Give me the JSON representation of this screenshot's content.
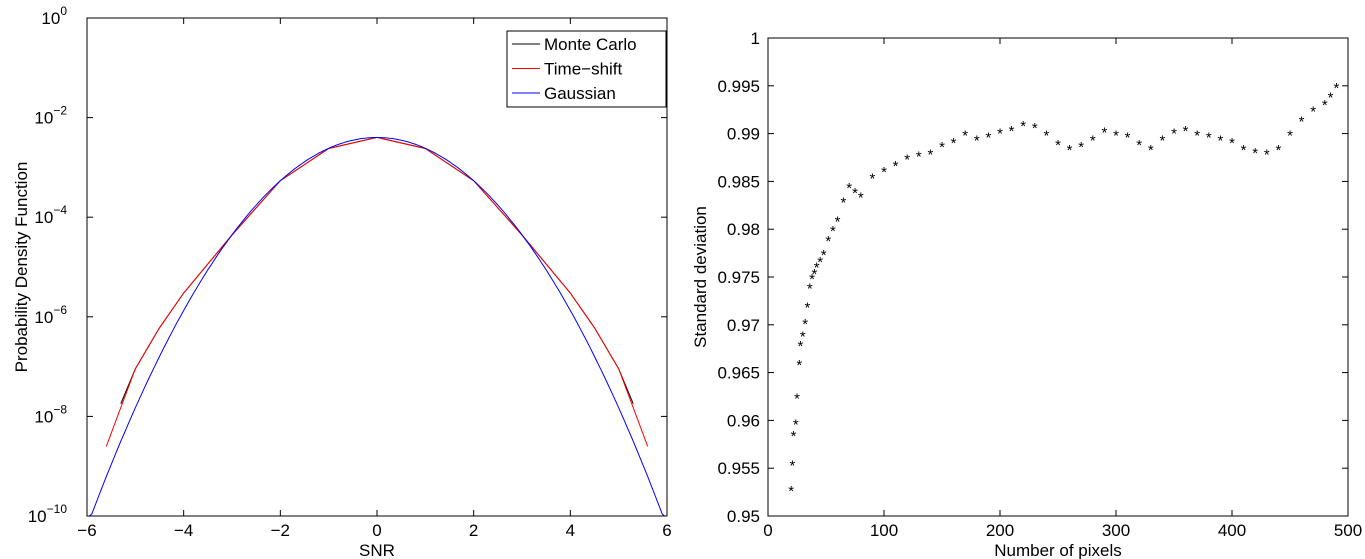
{
  "chart_data": [
    {
      "type": "line",
      "title": "",
      "xlabel": "SNR",
      "ylabel": "Probability Density Function",
      "xlim": [
        -6,
        6
      ],
      "ylim": [
        1e-10,
        1
      ],
      "yscale": "log",
      "xticks": [
        "−6",
        "−4",
        "−2",
        "0",
        "2",
        "4",
        "6"
      ],
      "yticks": [
        {
          "base": "10",
          "exp": "0"
        },
        {
          "base": "10",
          "exp": "-2"
        },
        {
          "base": "10",
          "exp": "-4"
        },
        {
          "base": "10",
          "exp": "-6"
        },
        {
          "base": "10",
          "exp": "-8"
        },
        {
          "base": "10",
          "exp": "-10"
        }
      ],
      "legend_position": "top-right",
      "grid": false,
      "series": [
        {
          "name": "Monte Carlo",
          "color": "#000000",
          "x": [
            -5.3,
            -5.0,
            -4.5,
            -4.0,
            -3.0,
            -2.0,
            -1.0,
            0.0,
            1.0,
            2.0,
            3.0,
            4.0,
            4.5,
            5.0,
            5.3
          ],
          "y": [
            1.8e-08,
            9e-08,
            6e-07,
            3e-06,
            4.4e-05,
            0.00054,
            0.0024,
            0.004,
            0.0024,
            0.00054,
            4.4e-05,
            3e-06,
            6e-07,
            9e-08,
            1.8e-08
          ]
        },
        {
          "name": "Time−shift",
          "color": "#ff0000",
          "x": [
            -5.6,
            -5.3,
            -5.0,
            -4.5,
            -4.0,
            -3.0,
            -2.0,
            -1.0,
            0.0,
            1.0,
            2.0,
            3.0,
            4.0,
            4.5,
            5.0,
            5.3,
            5.6
          ],
          "y": [
            2.5e-09,
            1.5e-08,
            9e-08,
            6e-07,
            3e-06,
            4.4e-05,
            0.00054,
            0.0024,
            0.004,
            0.0024,
            0.00054,
            4.4e-05,
            3e-06,
            6e-07,
            9e-08,
            1.5e-08,
            2.5e-09
          ]
        },
        {
          "name": "Gaussian",
          "color": "#0000ff",
          "function": "gaussian",
          "mu": 0,
          "sigma": 1,
          "scale": 0.01,
          "x_range": [
            -6,
            6
          ]
        }
      ]
    },
    {
      "type": "scatter",
      "title": "",
      "xlabel": "Number of pixels",
      "ylabel": "Standard deviation",
      "xlim": [
        0,
        500
      ],
      "ylim": [
        0.95,
        1
      ],
      "xticks": [
        "0",
        "100",
        "200",
        "300",
        "400",
        "500"
      ],
      "yticks": [
        "0.95",
        "0.955",
        "0.96",
        "0.965",
        "0.97",
        "0.975",
        "0.98",
        "0.985",
        "0.99",
        "0.995",
        "1"
      ],
      "marker": "*",
      "grid": false,
      "series": [
        {
          "color": "#000000",
          "x": [
            20,
            21,
            22,
            24,
            25,
            27,
            28,
            30,
            32,
            34,
            36,
            38,
            40,
            42,
            45,
            48,
            52,
            56,
            60,
            65,
            70,
            75,
            80,
            90,
            100,
            110,
            120,
            130,
            140,
            150,
            160,
            170,
            180,
            190,
            200,
            210,
            220,
            230,
            240,
            250,
            260,
            270,
            280,
            290,
            300,
            310,
            320,
            330,
            340,
            350,
            360,
            370,
            380,
            390,
            400,
            410,
            420,
            430,
            440,
            450,
            460,
            470,
            480,
            485,
            490
          ],
          "y": [
            0.9528,
            0.9555,
            0.9586,
            0.9598,
            0.9625,
            0.966,
            0.968,
            0.969,
            0.9703,
            0.972,
            0.974,
            0.975,
            0.9755,
            0.9762,
            0.9768,
            0.9775,
            0.979,
            0.98,
            0.981,
            0.983,
            0.9845,
            0.984,
            0.9835,
            0.9855,
            0.9862,
            0.9868,
            0.9875,
            0.9878,
            0.988,
            0.9888,
            0.9892,
            0.99,
            0.9895,
            0.9898,
            0.9902,
            0.9905,
            0.991,
            0.9908,
            0.99,
            0.989,
            0.9885,
            0.9888,
            0.9895,
            0.9903,
            0.99,
            0.9898,
            0.989,
            0.9885,
            0.9895,
            0.9902,
            0.9905,
            0.99,
            0.9898,
            0.9895,
            0.9892,
            0.9885,
            0.9882,
            0.988,
            0.9885,
            0.99,
            0.9915,
            0.9925,
            0.9932,
            0.994,
            0.995
          ]
        }
      ]
    }
  ]
}
